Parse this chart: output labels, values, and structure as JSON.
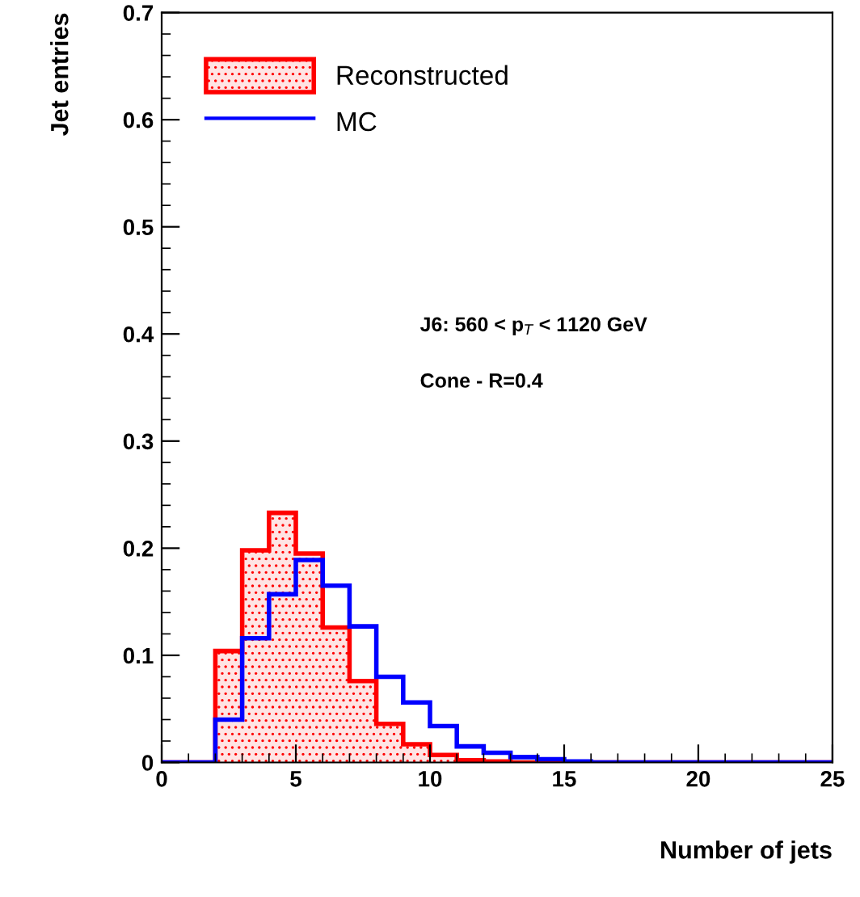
{
  "chart_data": {
    "type": "histogram",
    "xlabel": "Number of jets",
    "ylabel": "Jet entries",
    "bins": [
      0,
      1,
      2,
      3,
      4,
      5,
      6,
      7,
      8,
      9,
      10,
      11,
      12,
      13,
      14,
      15,
      16,
      17,
      18,
      19,
      20,
      21,
      22,
      23,
      24,
      25
    ],
    "series": [
      {
        "name": "Reconstructed",
        "color": "#ff0000",
        "values": [
          0,
          0,
          0.104,
          0.198,
          0.233,
          0.195,
          0.126,
          0.076,
          0.036,
          0.017,
          0.007,
          0.002,
          0.001,
          0,
          0,
          0,
          0,
          0,
          0,
          0,
          0,
          0,
          0,
          0,
          0
        ]
      },
      {
        "name": "MC",
        "color": "#0000ff",
        "values": [
          0,
          0,
          0.04,
          0.116,
          0.157,
          0.189,
          0.165,
          0.127,
          0.08,
          0.056,
          0.034,
          0.015,
          0.009,
          0.005,
          0.003,
          0.001,
          0,
          0,
          0,
          0,
          0,
          0,
          0,
          0,
          0
        ]
      }
    ],
    "xlim": [
      0,
      25
    ],
    "ylim": [
      0,
      0.7
    ],
    "xticks": [
      0,
      5,
      10,
      15,
      20,
      25
    ],
    "yticks": [
      0,
      0.1,
      0.2,
      0.3,
      0.4,
      0.5,
      0.6,
      0.7
    ],
    "grid": false,
    "legend": "top left",
    "annotations": [
      "J6: 560 < p$_{T}$ < 1120 GeV",
      "Cone - R=0.4"
    ]
  }
}
